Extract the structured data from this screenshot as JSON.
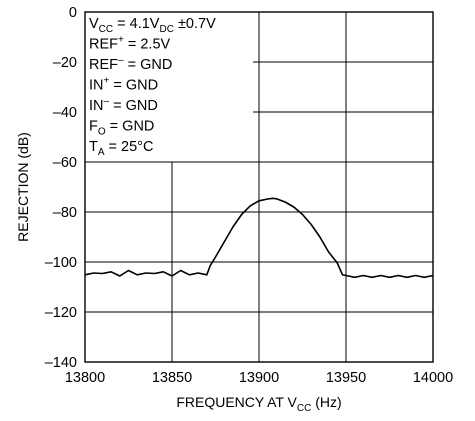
{
  "chart_data": {
    "type": "line",
    "title": "",
    "xlabel": {
      "main": "FREQUENCY AT V",
      "sub": "CC",
      "tail": " (Hz)"
    },
    "ylabel": "REJECTION (dB)",
    "xlim": [
      13800,
      14000
    ],
    "ylim": [
      -140,
      0
    ],
    "xticks": [
      13800,
      13850,
      13900,
      13950,
      14000
    ],
    "yticks": [
      0,
      -20,
      -40,
      -60,
      -80,
      -100,
      -120,
      -140
    ],
    "ytick_labels": [
      "0",
      "–20",
      "–40",
      "–60",
      "–80",
      "–100",
      "–120",
      "–140"
    ],
    "grid": true,
    "annotations": [
      {
        "parts": [
          {
            "t": "V"
          },
          {
            "t": "CC",
            "s": "sub"
          },
          {
            "t": " = 4.1V"
          },
          {
            "t": "DC",
            "s": "sub"
          },
          {
            "t": " ±0.7V"
          }
        ]
      },
      {
        "parts": [
          {
            "t": "REF"
          },
          {
            "t": "+",
            "s": "sup"
          },
          {
            "t": " = 2.5V"
          }
        ]
      },
      {
        "parts": [
          {
            "t": "REF"
          },
          {
            "t": "–",
            "s": "sup"
          },
          {
            "t": " = GND"
          }
        ]
      },
      {
        "parts": [
          {
            "t": "IN"
          },
          {
            "t": "+",
            "s": "sup"
          },
          {
            "t": " = GND"
          }
        ]
      },
      {
        "parts": [
          {
            "t": "IN"
          },
          {
            "t": "–",
            "s": "sup"
          },
          {
            "t": " = GND"
          }
        ]
      },
      {
        "parts": [
          {
            "t": "F"
          },
          {
            "t": "O",
            "s": "sub"
          },
          {
            "t": " = GND"
          }
        ]
      },
      {
        "parts": [
          {
            "t": "T"
          },
          {
            "t": "A",
            "s": "sub"
          },
          {
            "t": " = 25°C"
          }
        ]
      }
    ],
    "series": [
      {
        "x": [
          13800,
          13805,
          13810,
          13815,
          13820,
          13825,
          13830,
          13835,
          13840,
          13845,
          13850,
          13855,
          13860,
          13865,
          13870,
          13872,
          13875,
          13880,
          13885,
          13890,
          13895,
          13900,
          13905,
          13908,
          13910,
          13915,
          13920,
          13925,
          13930,
          13935,
          13940,
          13945,
          13948,
          13950,
          13955,
          13960,
          13965,
          13970,
          13975,
          13980,
          13985,
          13990,
          13995,
          14000
        ],
        "y": [
          -104.5,
          -105,
          -104,
          -104.5,
          -105,
          -104,
          -104.5,
          -105,
          -104,
          -104.5,
          -105,
          -104,
          -104.5,
          -105,
          -104.5,
          -102,
          -98,
          -92,
          -86,
          -81,
          -77.5,
          -75.5,
          -74.8,
          -74.5,
          -74.7,
          -76,
          -78,
          -81,
          -85,
          -90,
          -96,
          -101,
          -104.5,
          -106,
          -105.5,
          -106,
          -105.5,
          -106,
          -105.5,
          -106,
          -105.5,
          -106,
          -105.5,
          -106
        ]
      }
    ]
  }
}
